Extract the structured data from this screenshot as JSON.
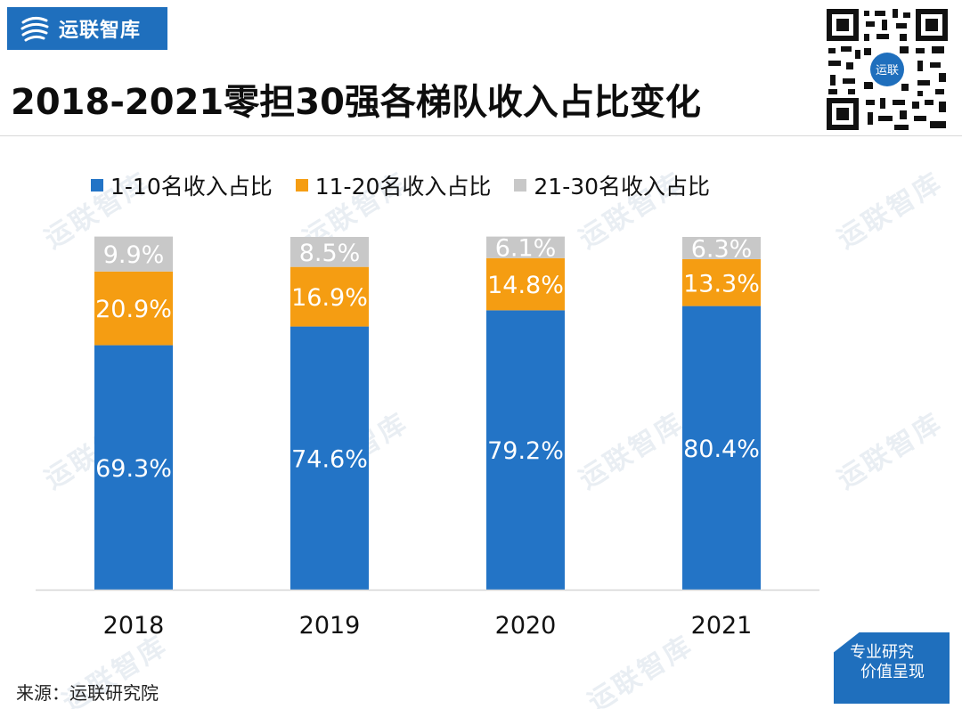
{
  "brand": {
    "name": "运联智库"
  },
  "title": "2018-2021零担30强各梯队收入占比变化",
  "qr": {
    "center_label": "运联"
  },
  "watermark_text": "运联智库",
  "legend": [
    {
      "label": "1-10名收入占比",
      "color": "#2374c6"
    },
    {
      "label": "11-20名收入占比",
      "color": "#f59d12"
    },
    {
      "label": "21-30名收入占比",
      "color": "#c8c8c8"
    }
  ],
  "chart_data": {
    "type": "bar",
    "stacked": true,
    "title": "2018-2021零担30强各梯队收入占比变化",
    "categories": [
      "2018",
      "2019",
      "2020",
      "2021"
    ],
    "series": [
      {
        "name": "1-10名收入占比",
        "color": "#2374c6",
        "values": [
          69.3,
          74.6,
          79.2,
          80.4
        ],
        "labels": [
          "69.3%",
          "74.6%",
          "79.2%",
          "80.4%"
        ]
      },
      {
        "name": "11-20名收入占比",
        "color": "#f59d12",
        "values": [
          20.9,
          16.9,
          14.8,
          13.3
        ],
        "labels": [
          "20.9%",
          "16.9%",
          "14.8%",
          "13.3%"
        ]
      },
      {
        "name": "21-30名收入占比",
        "color": "#c8c8c8",
        "values": [
          9.9,
          8.5,
          6.1,
          6.3
        ],
        "labels": [
          "9.9%",
          "8.5%",
          "6.1%",
          "6.3%"
        ]
      }
    ],
    "ylim": [
      0,
      100
    ],
    "xlabel": "",
    "ylabel": "",
    "grid": false,
    "legend_position": "top"
  },
  "source": "来源：运联研究院",
  "badge": {
    "line1": "专业研究",
    "line2": "价值呈现"
  }
}
